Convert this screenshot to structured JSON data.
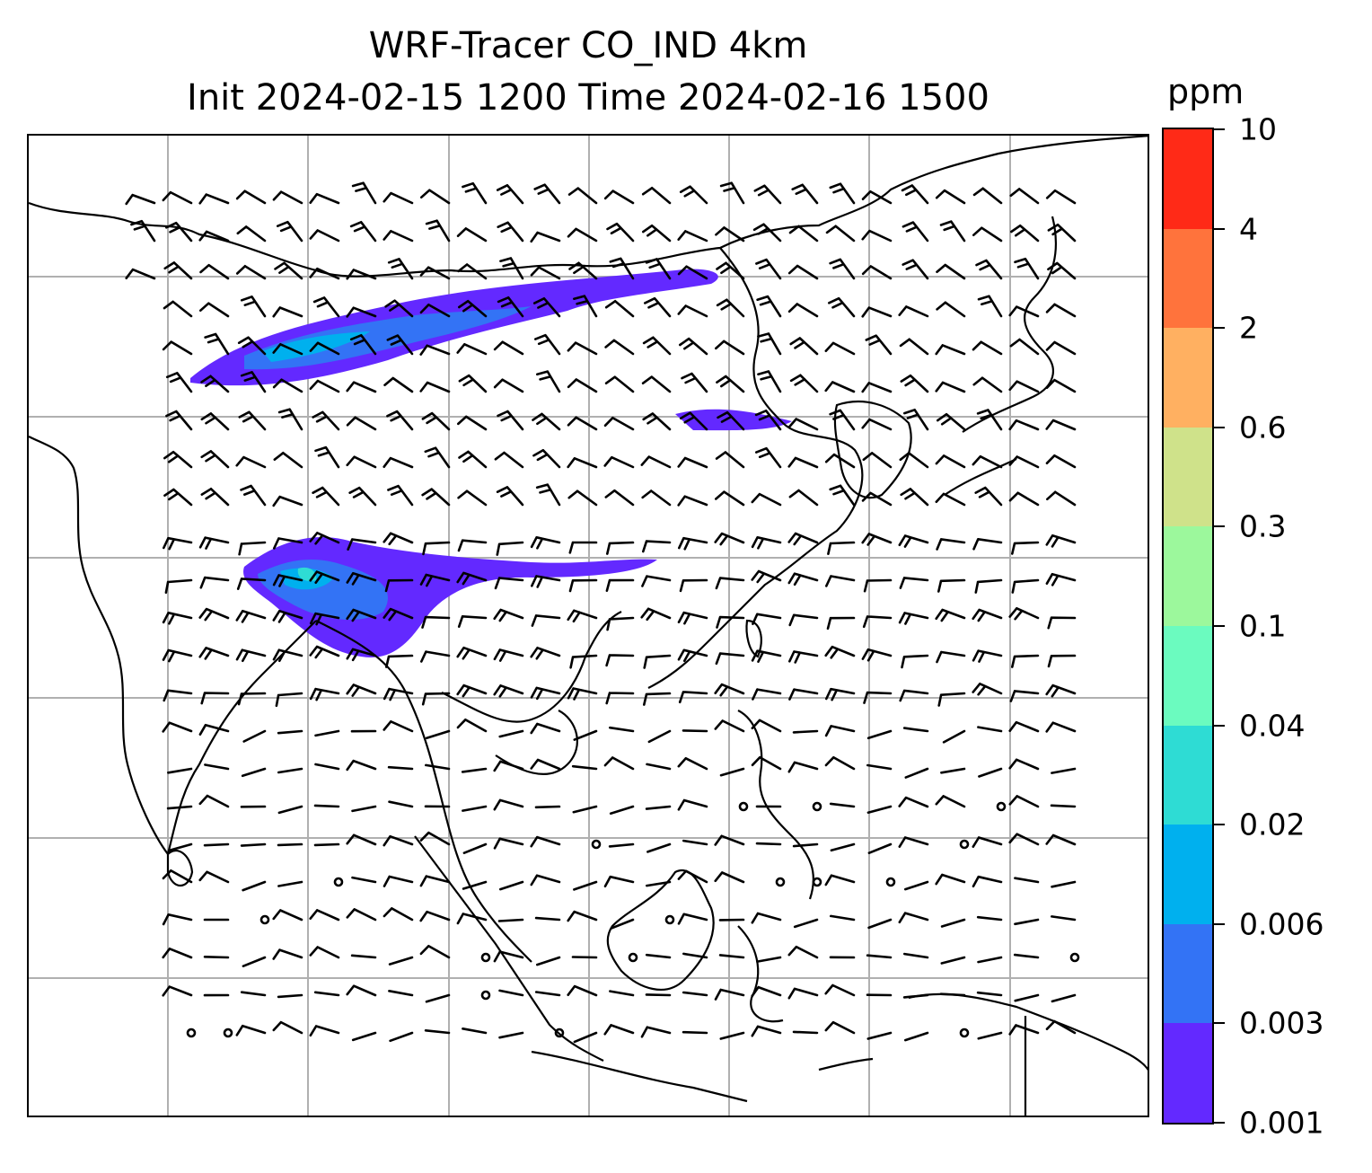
{
  "title": {
    "line1": "WRF-Tracer CO_IND 4km",
    "line2": "Init 2024-02-15 1200 Time 2024-02-16 1500"
  },
  "colorbar": {
    "unit": "ppm",
    "ticks": [
      "0.001",
      "0.003",
      "0.006",
      "0.02",
      "0.04",
      "0.1",
      "0.3",
      "0.6",
      "2",
      "4",
      "10"
    ],
    "colors": [
      "#6329ff",
      "#3373f5",
      "#00b0ee",
      "#2edcd4",
      "#6bfbbf",
      "#9cf89c",
      "#cfe28a",
      "#ffb061",
      "#ff733c",
      "#ff2a17"
    ]
  },
  "map": {
    "plume_colors": {
      "low": "#6329ff",
      "mid": "#3373f5",
      "high": "#00b0ee",
      "peak": "#2edcd4"
    },
    "coast_color": "#000000",
    "grid_color": "#b0b0b0"
  }
}
